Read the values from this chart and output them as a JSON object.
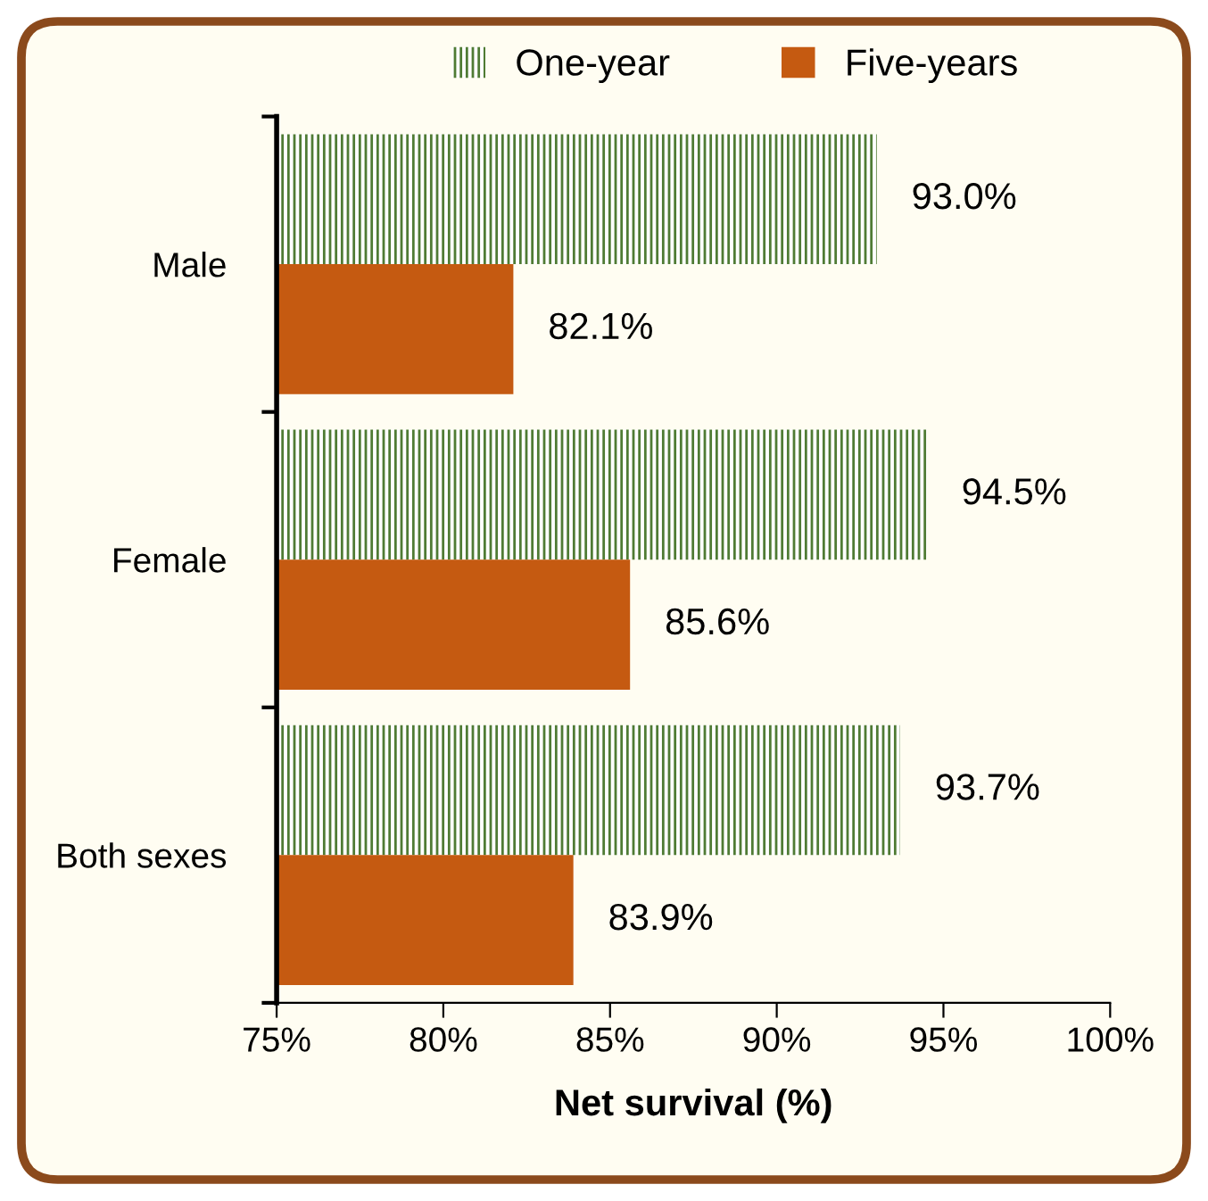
{
  "chart_data": {
    "type": "bar",
    "orientation": "horizontal",
    "xlabel": "Net survival (%)",
    "categories": [
      "Male",
      "Female",
      "Both sexes"
    ],
    "series": [
      {
        "name": "One-year",
        "color": "#4f7b34",
        "values": [
          93.0,
          94.5,
          93.7
        ],
        "value_labels": [
          "93.0%",
          "94.5%",
          "93.7%"
        ]
      },
      {
        "name": "Five-years",
        "color": "#c55a11",
        "values": [
          82.1,
          85.6,
          83.9
        ],
        "value_labels": [
          "82.1%",
          "85.6%",
          "83.9%"
        ]
      }
    ],
    "xlim": [
      75,
      100
    ],
    "xticks": [
      {
        "value": 75,
        "label": "75%"
      },
      {
        "value": 80,
        "label": "80%"
      },
      {
        "value": 85,
        "label": "85%"
      },
      {
        "value": 90,
        "label": "90%"
      },
      {
        "value": 95,
        "label": "95%"
      },
      {
        "value": 100,
        "label": "100%"
      }
    ],
    "grid": false,
    "legend": "top"
  }
}
